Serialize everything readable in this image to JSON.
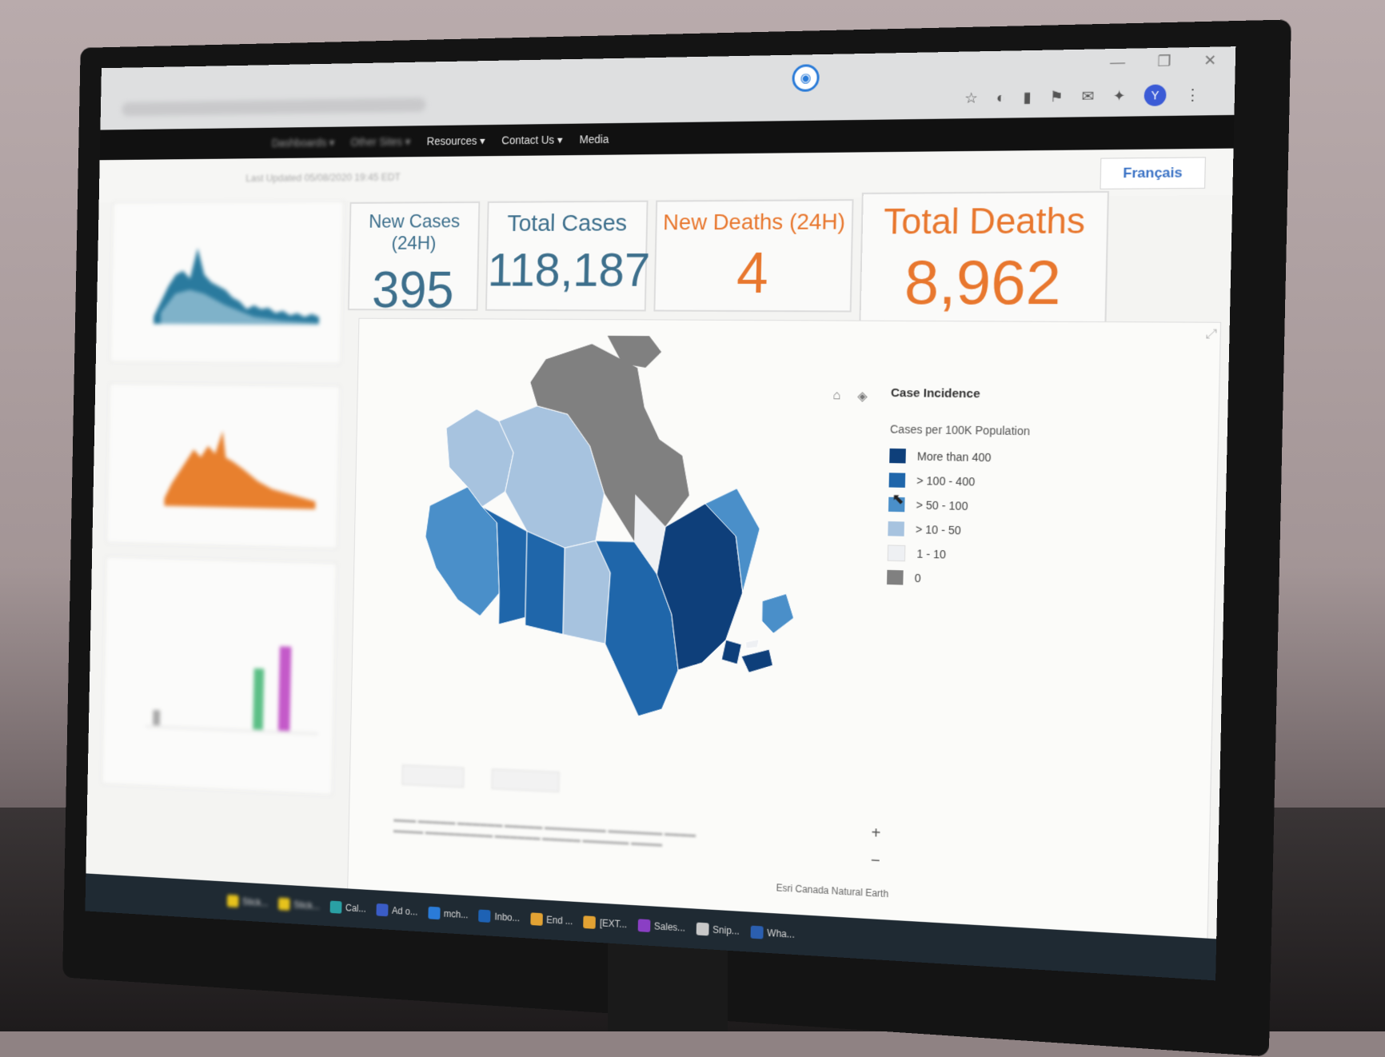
{
  "browser": {
    "window_controls": [
      "—",
      "❐",
      "✕"
    ],
    "extensions": [
      "☆",
      "◐",
      "▮",
      "⚑",
      "✉",
      "✦"
    ],
    "avatar_letter": "Y"
  },
  "site_nav": {
    "items": [
      "Dashboards ▾",
      "Other Sites ▾",
      "Resources ▾",
      "Contact Us ▾",
      "Media"
    ]
  },
  "dashboard": {
    "updated": "Last Updated 05/08/2020 19:45 EDT",
    "language_button": "Français"
  },
  "kpis": [
    {
      "label": "New Cases (24H)",
      "value": "395",
      "color": "#3d6f8c"
    },
    {
      "label": "Total Cases",
      "value": "118,187",
      "color": "#3d6f8c"
    },
    {
      "label": "New Deaths (24H)",
      "value": "4",
      "color": "#e8772e"
    },
    {
      "label": "Total Deaths",
      "value": "8,962",
      "color": "#e8772e"
    }
  ],
  "map": {
    "legend_title": "Case Incidence",
    "legend_subtitle": "Cases per 100K Population",
    "legend": [
      {
        "label": "More than 400",
        "color": "#0e3f7a"
      },
      {
        "label": "> 100 - 400",
        "color": "#1f66aa"
      },
      {
        "label": "> 50 - 100",
        "color": "#4a8fc9"
      },
      {
        "label": "> 10 - 50",
        "color": "#a7c3df"
      },
      {
        "label": "1 - 10",
        "color": "#eef0f3"
      },
      {
        "label": "0",
        "color": "#808080"
      }
    ],
    "attribution": "Esri Canada Natural Earth",
    "zoom_in": "+",
    "zoom_out": "−"
  },
  "taskbar": {
    "items": [
      "Stick...",
      "Stick...",
      "Cal...",
      "Ad o...",
      "mch...",
      "Inbo...",
      "End ...",
      "[EXT...",
      "Sales...",
      "Snip...",
      "Wha..."
    ]
  }
}
